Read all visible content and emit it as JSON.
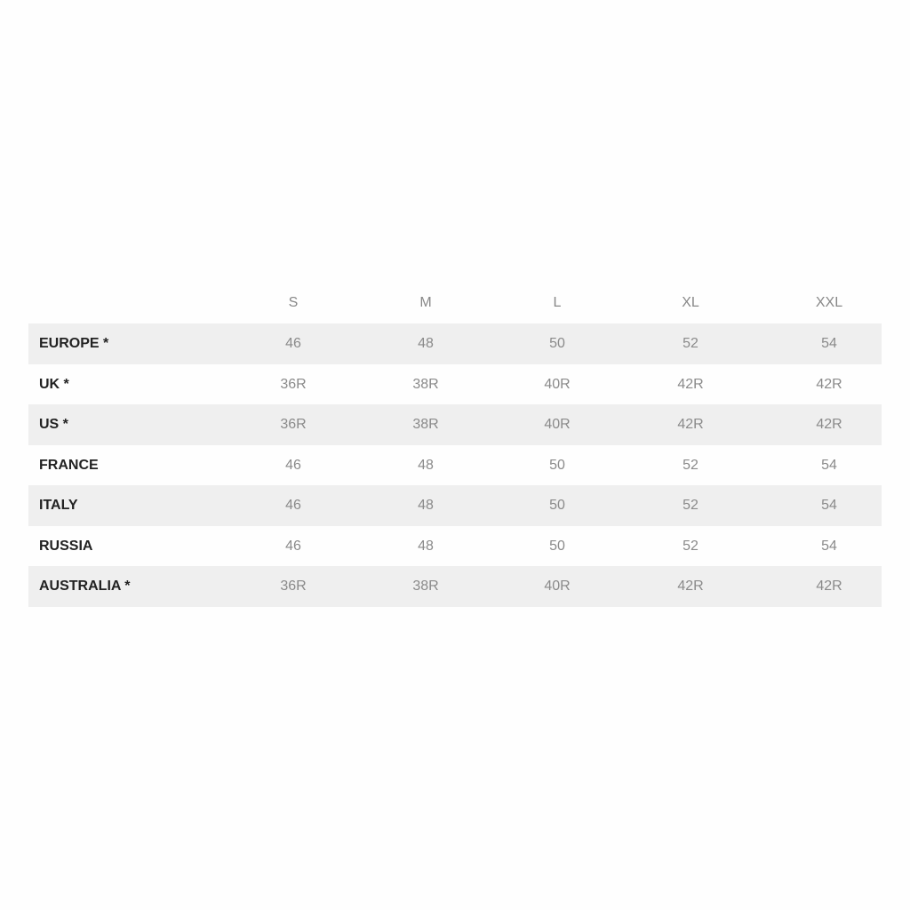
{
  "columns": [
    "S",
    "M",
    "L",
    "XL",
    "XXL"
  ],
  "rows": [
    {
      "label": "EUROPE *",
      "values": [
        "46",
        "48",
        "50",
        "52",
        "54"
      ]
    },
    {
      "label": "UK *",
      "values": [
        "36R",
        "38R",
        "40R",
        "42R",
        "42R"
      ]
    },
    {
      "label": "US *",
      "values": [
        "36R",
        "38R",
        "40R",
        "42R",
        "42R"
      ]
    },
    {
      "label": "FRANCE",
      "values": [
        "46",
        "48",
        "50",
        "52",
        "54"
      ]
    },
    {
      "label": "ITALY",
      "values": [
        "46",
        "48",
        "50",
        "52",
        "54"
      ]
    },
    {
      "label": "RUSSIA",
      "values": [
        "46",
        "48",
        "50",
        "52",
        "54"
      ]
    },
    {
      "label": "AUSTRALIA *",
      "values": [
        "36R",
        "38R",
        "40R",
        "42R",
        "42R"
      ]
    }
  ],
  "colors": {
    "stripe": "#efefef",
    "label": "#222222",
    "value": "#8a8a8a"
  }
}
